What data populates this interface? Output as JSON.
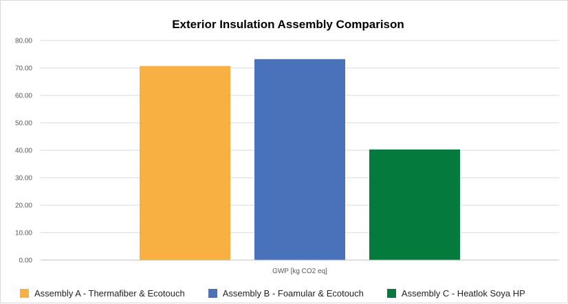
{
  "chart_data": {
    "type": "bar",
    "title": "Exterior Insulation Assembly Comparison",
    "xlabel": "GWP [kg CO2 eq]",
    "ylabel": "",
    "categories": [
      "GWP [kg CO2 eq]"
    ],
    "ylim": [
      0,
      80
    ],
    "yticks": [
      "0.00",
      "10.00",
      "20.00",
      "30.00",
      "40.00",
      "50.00",
      "60.00",
      "70.00",
      "80.00"
    ],
    "grid": true,
    "legend_position": "bottom",
    "series": [
      {
        "name": "Assembly A - Thermafiber & Ecotouch",
        "values": [
          70.7
        ],
        "color": "#F9B043"
      },
      {
        "name": "Assembly B - Foamular & Ecotouch",
        "values": [
          73.2
        ],
        "color": "#4A72BA"
      },
      {
        "name": "Assembly C - Heatlok Soya HP",
        "values": [
          40.3
        ],
        "color": "#047A3C"
      }
    ]
  }
}
